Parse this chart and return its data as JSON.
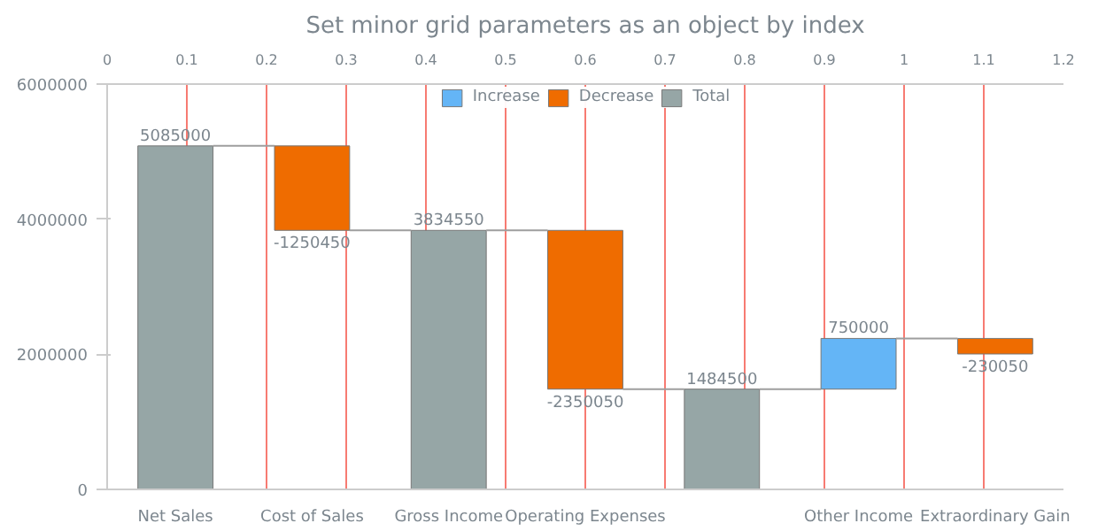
{
  "chart_data": {
    "type": "bar",
    "title": "Set minor grid parameters as an object by index",
    "categories": [
      "Net Sales",
      "Cost of Sales",
      "Gross Income",
      "Operating Expenses",
      null,
      "Other Income",
      "Extraordinary Gain"
    ],
    "series": [
      {
        "name": "Increase",
        "color": "#64b5f6",
        "values": [
          null,
          null,
          null,
          null,
          null,
          750000,
          null
        ],
        "base": [
          null,
          null,
          null,
          null,
          null,
          1484500,
          null
        ]
      },
      {
        "name": "Decrease",
        "color": "#ef6c00",
        "values": [
          null,
          -1250450,
          null,
          -2350050,
          null,
          null,
          -230050
        ],
        "base": [
          null,
          5085000,
          null,
          3834550,
          null,
          null,
          2234500
        ]
      },
      {
        "name": "Total",
        "color": "#96a6a6",
        "values": [
          5085000,
          null,
          3834550,
          null,
          1484500,
          null,
          null
        ]
      }
    ],
    "ylim": [
      0,
      6000000
    ],
    "yticks": [
      0,
      2000000,
      4000000,
      6000000
    ],
    "x2lim": [
      0,
      1.2
    ],
    "x2ticks": [
      0,
      0.1,
      0.2,
      0.3,
      0.4,
      0.5,
      0.6,
      0.7,
      0.8,
      0.9,
      {
        "value": 1.0,
        "label": "1"
      },
      1.1,
      1.2
    ],
    "grid": "x",
    "legend": "top",
    "data_labels": true
  }
}
